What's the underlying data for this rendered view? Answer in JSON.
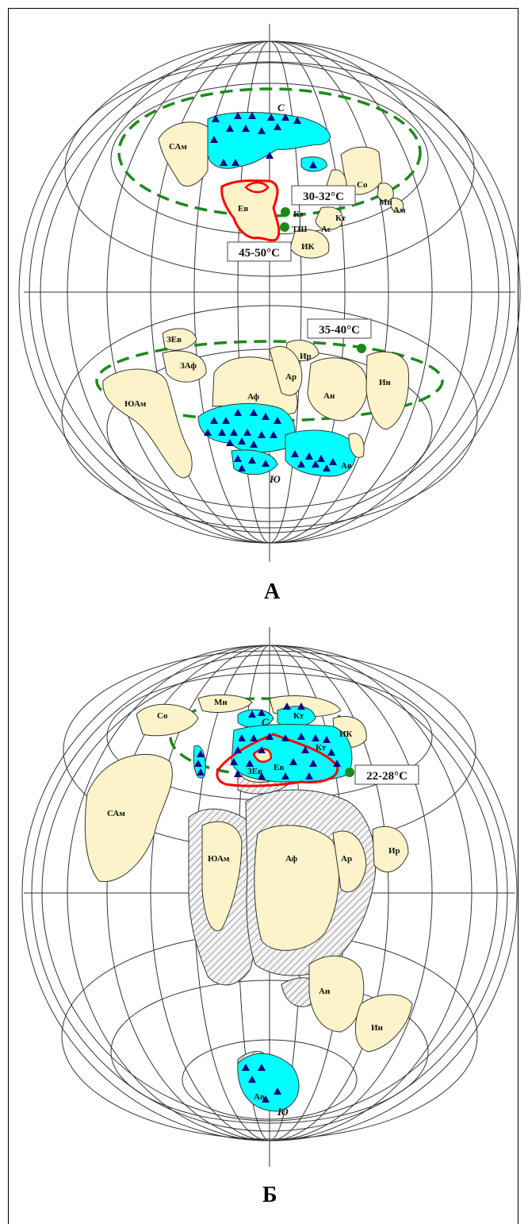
{
  "panels": [
    {
      "letter": "А",
      "pole_north": "С",
      "pole_south": "Ю",
      "temperatures": [
        "30-32°С",
        "45-50°С",
        "35-40°С"
      ],
      "points": [
        "Кз",
        "ТШ"
      ],
      "landmasses": [
        "САм",
        "Со",
        "Мн",
        "Ам",
        "Кт",
        "Ас",
        "Ев",
        "ИК",
        "ЗЕв",
        "ЗАф",
        "Ир",
        "ЮАм",
        "Аф",
        "Ар",
        "Ан",
        "Ин",
        "Ав"
      ]
    },
    {
      "letter": "Б",
      "pole_north": "С",
      "pole_south": "Ю",
      "temperatures": [
        "22-28°С"
      ],
      "landmasses": [
        "Со",
        "Мн",
        "Кт",
        "Кт",
        "ИК",
        "Ев",
        "САм",
        "ЗЕв",
        "ЮАм",
        "Аф",
        "Ар",
        "Ир",
        "Ан",
        "Ин",
        "Ав"
      ]
    }
  ],
  "colors": {
    "land": "#FCF3C8",
    "glacier": "#00FFFF",
    "red_outline": "#FF0000",
    "green_dashed": "#1A8A1A",
    "triangle": "#0D0080"
  }
}
